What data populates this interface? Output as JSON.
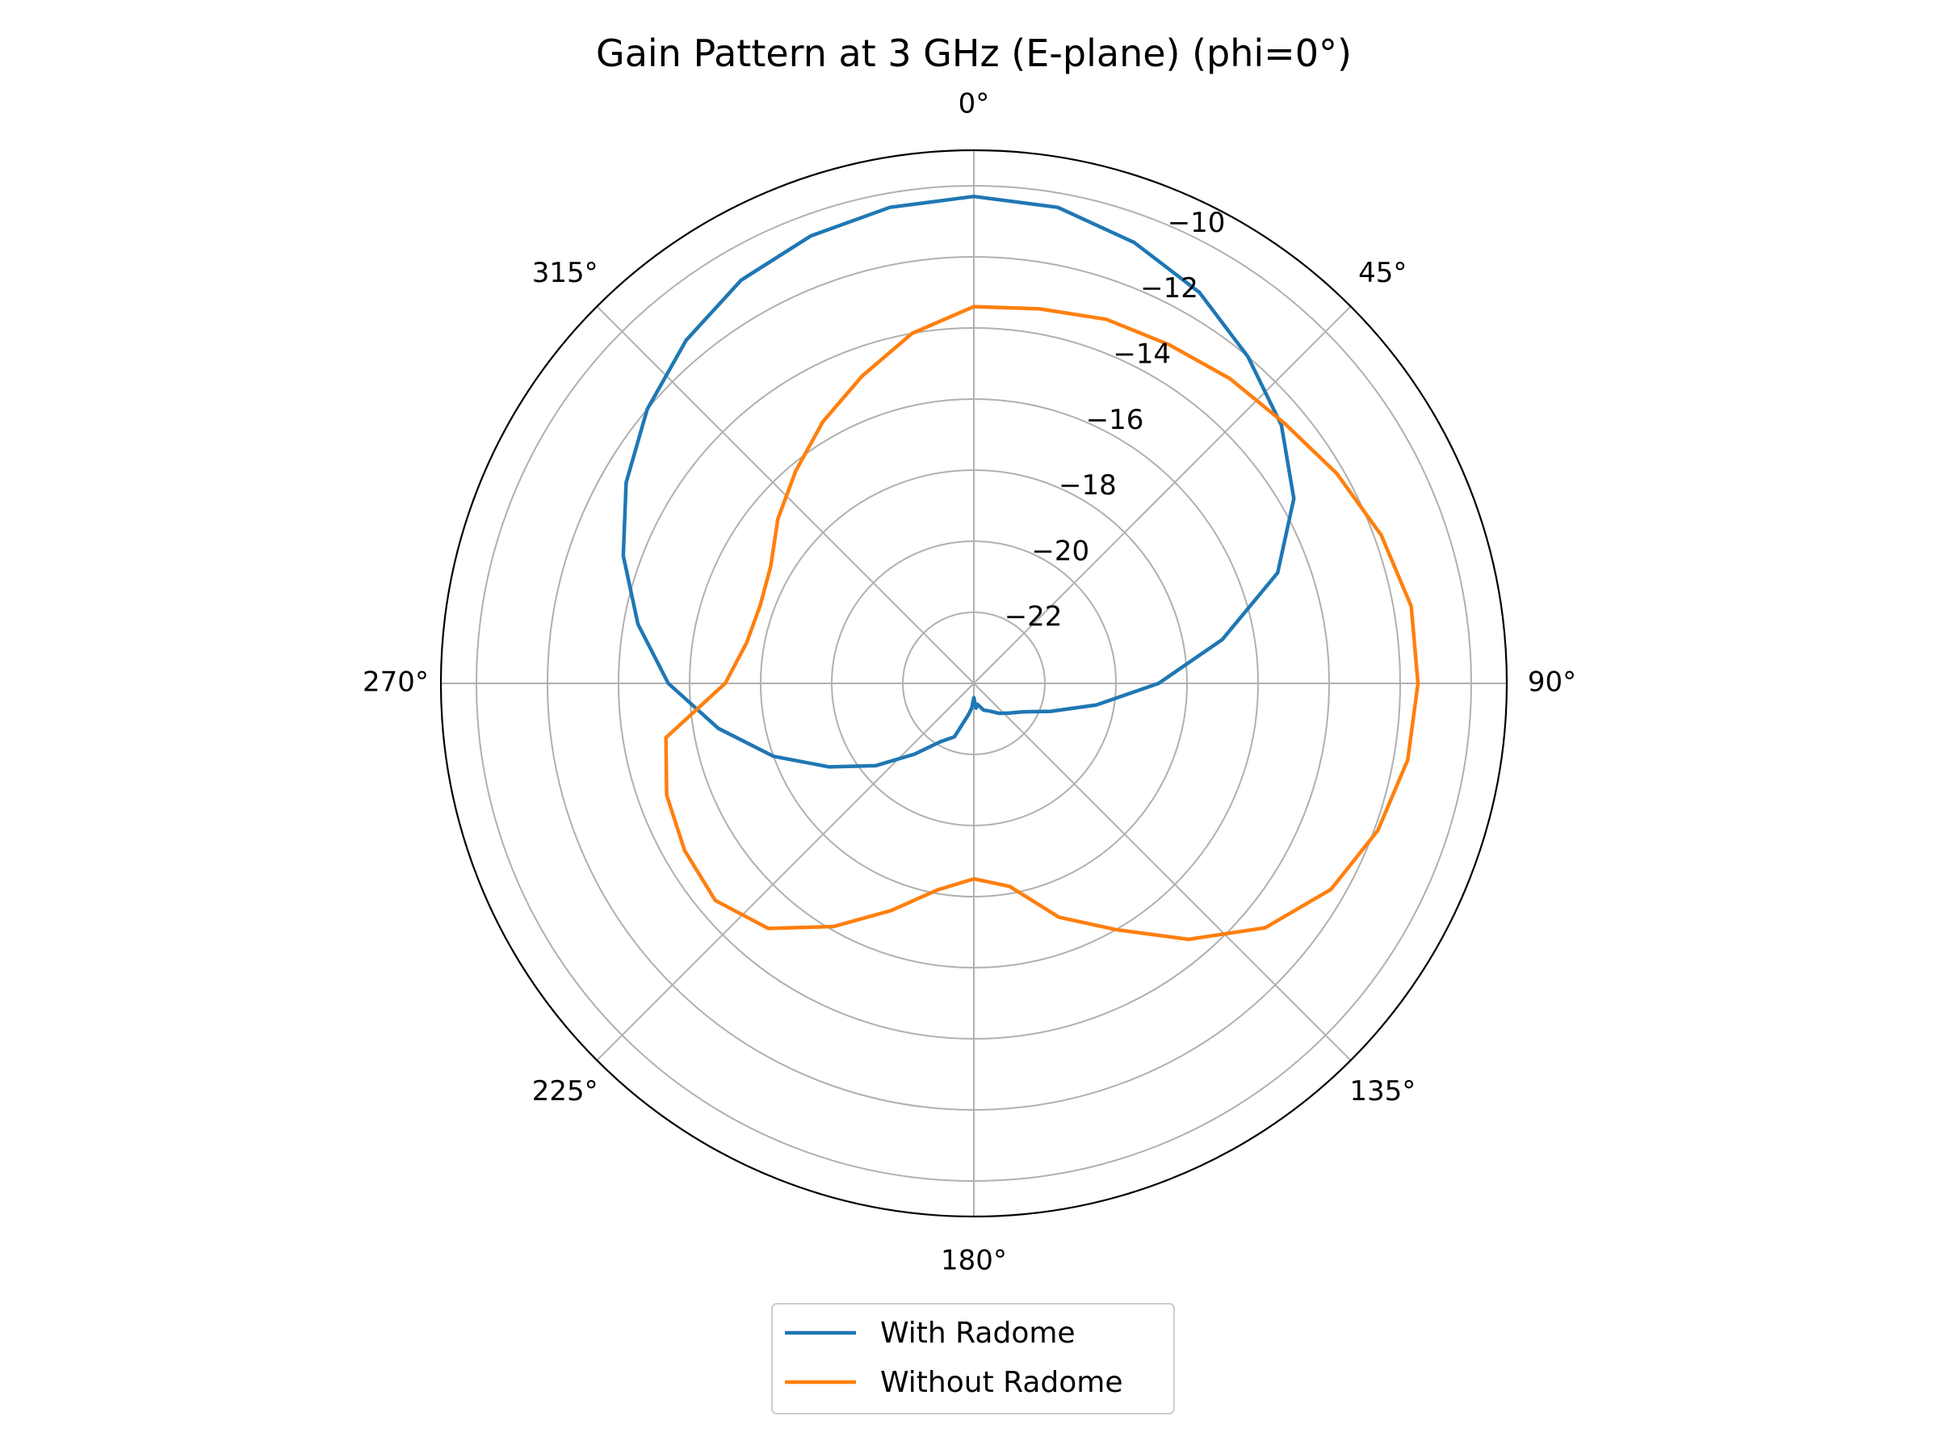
{
  "chart_data": {
    "type": "line",
    "projection": "polar",
    "title": "Gain Pattern at 3 GHz (E-plane) (phi=0°)",
    "theta_zero_location": "top",
    "theta_direction": "clockwise",
    "angle_unit": "deg",
    "value_unit": "dB",
    "rlim": [
      -24,
      -9
    ],
    "radial_ticks": [
      -22,
      -20,
      -18,
      -16,
      -14,
      -12,
      -10
    ],
    "radial_tick_labels": [
      "−22",
      "−20",
      "−18",
      "−16",
      "−14",
      "−12",
      "−10"
    ],
    "angle_ticks": [
      0,
      45,
      90,
      135,
      180,
      225,
      270,
      315
    ],
    "angle_tick_labels": [
      "0°",
      "45°",
      "90°",
      "135°",
      "180°",
      "225°",
      "270°",
      "315°"
    ],
    "grid": true,
    "legend": {
      "position": "bottom-center",
      "entries": [
        "With Radome",
        "Without Radome"
      ]
    },
    "series": [
      {
        "name": "With Radome",
        "color": "#1f77b4",
        "theta": [
          0,
          10,
          20,
          30,
          40,
          50,
          60,
          70,
          80,
          90,
          100,
          110,
          120,
          130,
          140,
          150,
          160,
          170,
          175,
          180,
          185,
          190,
          200,
          210,
          220,
          230,
          240,
          250,
          260,
          270,
          280,
          290,
          300,
          310,
          320,
          330,
          340,
          350,
          360
        ],
        "r": [
          -10.3,
          -10.4,
          -10.8,
          -11.3,
          -12.0,
          -12.7,
          -13.6,
          -14.9,
          -16.9,
          -18.8,
          -20.5,
          -21.7,
          -22.4,
          -22.7,
          -22.9,
          -23.1,
          -23.2,
          -23.4,
          -23.3,
          -23.6,
          -23.3,
          -23.1,
          -22.4,
          -22.1,
          -21.4,
          -20.4,
          -19.3,
          -18.0,
          -16.7,
          -15.4,
          -14.4,
          -13.5,
          -12.7,
          -12.0,
          -11.4,
          -10.9,
          -10.6,
          -10.4,
          -10.3
        ]
      },
      {
        "name": "Without Radome",
        "color": "#ff7f0e",
        "theta": [
          0,
          10,
          20,
          30,
          40,
          50,
          60,
          70,
          80,
          90,
          100,
          110,
          120,
          130,
          140,
          150,
          160,
          170,
          180,
          190,
          200,
          210,
          220,
          230,
          240,
          250,
          260,
          270,
          280,
          290,
          300,
          310,
          320,
          330,
          340,
          350,
          360
        ],
        "r": [
          -13.4,
          -13.3,
          -13.1,
          -13.0,
          -12.8,
          -12.6,
          -12.2,
          -11.8,
          -11.5,
          -11.5,
          -11.6,
          -11.9,
          -12.4,
          -13.3,
          -14.6,
          -16.0,
          -17.0,
          -18.2,
          -18.5,
          -18.1,
          -17.2,
          -16.1,
          -15.0,
          -14.5,
          -14.6,
          -14.8,
          -15.2,
          -17.0,
          -17.5,
          -17.6,
          -17.4,
          -16.8,
          -16.2,
          -15.5,
          -14.8,
          -14.0,
          -13.4
        ]
      }
    ]
  }
}
